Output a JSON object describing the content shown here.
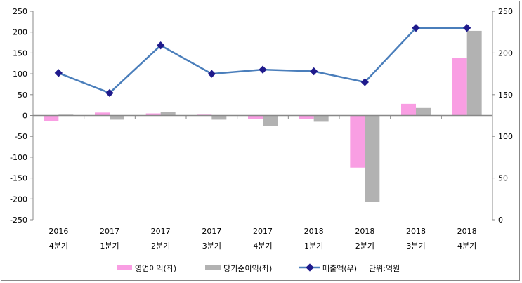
{
  "chart_data": {
    "type": "bar+line",
    "categories": [
      [
        "2016",
        "4분기"
      ],
      [
        "2017",
        "1분기"
      ],
      [
        "2017",
        "2분기"
      ],
      [
        "2017",
        "3분기"
      ],
      [
        "2017",
        "4분기"
      ],
      [
        "2018",
        "1분기"
      ],
      [
        "2018",
        "2분기"
      ],
      [
        "2018",
        "3분기"
      ],
      [
        "2018",
        "4분기"
      ]
    ],
    "left_axis": {
      "min": -250,
      "max": 250,
      "ticks": [
        250,
        200,
        150,
        100,
        50,
        0,
        -50,
        -100,
        -150,
        -200,
        -250
      ]
    },
    "right_axis": {
      "min": 0,
      "max": 250,
      "ticks": [
        250,
        200,
        150,
        100,
        50,
        0
      ]
    },
    "series": [
      {
        "name": "영업이익(좌)",
        "type": "bar",
        "axis": "left",
        "color": "#f99ee3",
        "values": [
          -14,
          7,
          5,
          2,
          -9,
          -9,
          -125,
          28,
          138
        ]
      },
      {
        "name": "당기순이익(좌)",
        "type": "bar",
        "axis": "left",
        "color": "#b2b2b2",
        "values": [
          2,
          -10,
          9,
          -10,
          -25,
          -15,
          -207,
          18,
          203
        ]
      },
      {
        "name": "매출액(우)",
        "type": "line",
        "axis": "right",
        "color": "#4a7ebb",
        "marker_color": "#1f1a8c",
        "values": [
          176,
          152,
          209,
          175,
          180,
          178,
          165,
          230,
          230
        ]
      }
    ],
    "unit_note": "단위:억원",
    "legend_position": "bottom"
  }
}
